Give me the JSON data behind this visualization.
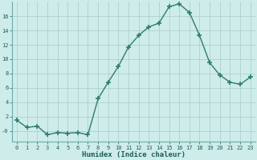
{
  "x": [
    0,
    1,
    2,
    3,
    4,
    5,
    6,
    7,
    8,
    9,
    10,
    11,
    12,
    13,
    14,
    15,
    16,
    17,
    18,
    19,
    20,
    21,
    22,
    23
  ],
  "y": [
    1.5,
    0.5,
    0.7,
    -0.5,
    -0.2,
    -0.3,
    -0.2,
    -0.5,
    4.5,
    6.8,
    9.0,
    11.7,
    13.3,
    14.5,
    15.0,
    17.3,
    17.7,
    16.5,
    13.3,
    9.5,
    7.8,
    6.8,
    6.5,
    7.5
  ],
  "line_color": "#2e7d6e",
  "marker": "+",
  "markersize": 4,
  "markeredgewidth": 1.2,
  "xlabel": "Humidex (Indice chaleur)",
  "ylabel": "",
  "xlim": [
    -0.5,
    23.5
  ],
  "ylim": [
    -1.5,
    18.0
  ],
  "yticks": [
    0,
    2,
    4,
    6,
    8,
    10,
    12,
    14,
    16
  ],
  "ytick_labels": [
    "-0",
    "2",
    "4",
    "6",
    "8",
    "10",
    "12",
    "14",
    "16"
  ],
  "xticks": [
    0,
    1,
    2,
    3,
    4,
    5,
    6,
    7,
    8,
    9,
    10,
    11,
    12,
    13,
    14,
    15,
    16,
    17,
    18,
    19,
    20,
    21,
    22,
    23
  ],
  "bg_color": "#ceecea",
  "grid_color": "#aed0ce",
  "line_width": 1.0,
  "tick_fontsize": 5.0,
  "xlabel_fontsize": 6.5
}
